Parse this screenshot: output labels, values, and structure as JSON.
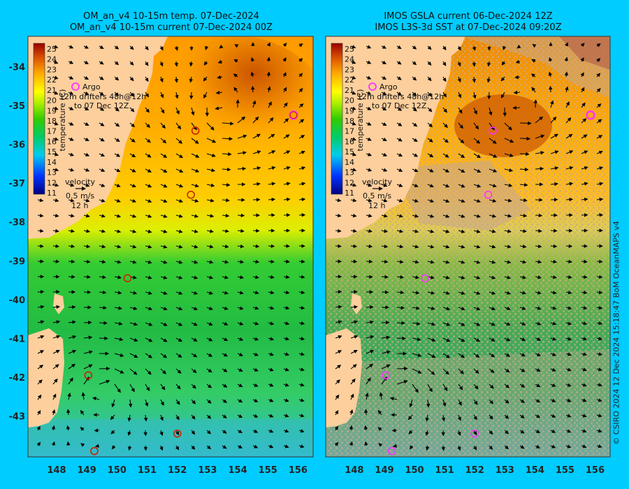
{
  "left_panel": {
    "title_line1": "OM_an_v4  10-15m temp. 07-Dec-2024",
    "title_line2": "OM_an_v4  10-15m current 07-Dec-2024 00Z"
  },
  "right_panel": {
    "title_line1": "IMOS GSLA current 06-Dec-2024 12Z",
    "title_line2": "IMOS L3S-3d SST at 07-Dec-2024 09:20Z"
  },
  "colorbar": {
    "label": "temperature (C)",
    "ticks": [
      "25",
      "24",
      "23",
      "22",
      "21",
      "20",
      "19",
      "18",
      "17",
      "16",
      "15",
      "14",
      "13",
      "12",
      "11"
    ]
  },
  "legend": {
    "argo": "Argo",
    "drifters": "12m drifters 48h@12h",
    "drifters_line2": "to 07 Dec 12Z",
    "velocity_label": "velocity",
    "velocity_scale": "0.5 m/s",
    "velocity_time": "12 h"
  },
  "axes": {
    "lat_ticks": [
      "-34",
      "-35",
      "-36",
      "-37",
      "-38",
      "-39",
      "-40",
      "-41",
      "-42",
      "-43"
    ],
    "lon_ticks": [
      "148",
      "149",
      "150",
      "151",
      "152",
      "153",
      "154",
      "155",
      "156"
    ]
  },
  "argo_floats": [
    {
      "lon": 152.6,
      "lat": -35.65
    },
    {
      "lon": 155.85,
      "lat": -35.25
    },
    {
      "lon": 152.45,
      "lat": -37.3
    },
    {
      "lon": 150.35,
      "lat": -39.45
    },
    {
      "lon": 149.05,
      "lat": -41.95
    },
    {
      "lon": 152.0,
      "lat": -43.45
    },
    {
      "lon": 149.25,
      "lat": -43.9
    }
  ],
  "credit": "© CSIRO 2024   12 Dec 2024 15:18:47 BoM OceanMAPS v4",
  "colors": {
    "land": "#fdcf9c",
    "masked": "#c9a98a",
    "background": "#00ccff",
    "argo_ring": "#ff33ff"
  }
}
